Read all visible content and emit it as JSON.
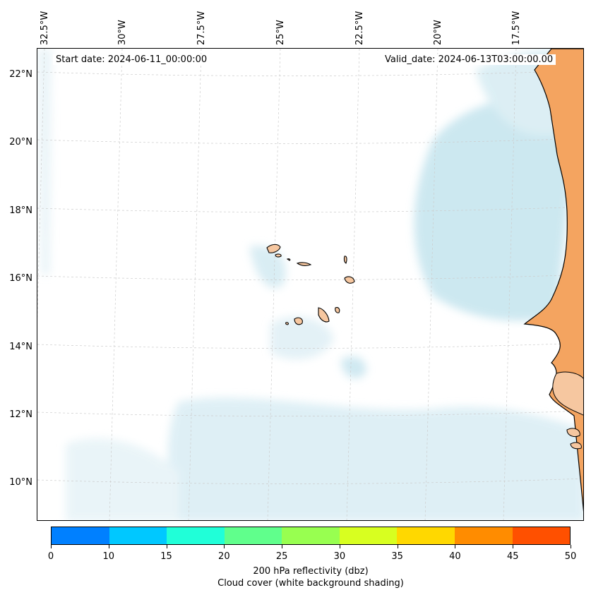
{
  "map": {
    "longitude_labels": [
      "32.5°W",
      "30°W",
      "27.5°W",
      "25°W",
      "22.5°W",
      "20°W",
      "17.5°W"
    ],
    "latitude_labels": [
      "22°N",
      "20°N",
      "18°N",
      "16°N",
      "14°N",
      "12°N",
      "10°N"
    ],
    "start_date": "Start date: 2024-06-11_00:00:00",
    "valid_date": "Valid_date: 2024-06-13T03:00:00.00",
    "land_color": "#f4a460",
    "cloud_color": "#add8e6"
  },
  "colorbar": {
    "ticks": [
      "0",
      "10",
      "15",
      "20",
      "25",
      "30",
      "35",
      "40",
      "45",
      "50"
    ],
    "colors": [
      "#0080ff",
      "#00c8ff",
      "#20ffd8",
      "#60ff8c",
      "#98ff50",
      "#d8ff20",
      "#ffd800",
      "#ff8c00",
      "#ff5000"
    ],
    "label": "200 hPa reflectivity (dbz)",
    "sublabel": "Cloud cover (white background shading)"
  }
}
